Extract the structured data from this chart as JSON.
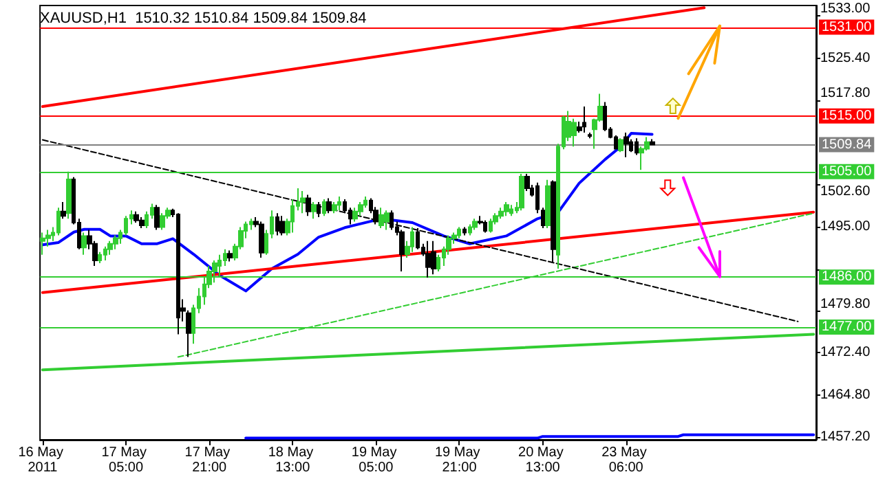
{
  "chart_data": {
    "type": "candlestick",
    "title": "XAUUSD,H1  1510.32 1510.84 1509.84 1509.84",
    "categories": [
      "16 May 2011",
      null,
      null,
      null,
      null,
      null,
      null,
      null,
      null,
      null,
      null,
      null,
      null,
      null,
      null,
      null,
      "17 May 05:00",
      null,
      null,
      null,
      null,
      null,
      null,
      null,
      null,
      null,
      null,
      null,
      null,
      null,
      null,
      null,
      "17 May 21:00",
      null,
      null,
      null,
      null,
      null,
      null,
      null,
      null,
      null,
      null,
      null,
      null,
      null,
      null,
      null,
      "18 May 13:00",
      null,
      null,
      null,
      null,
      null,
      null,
      null,
      null,
      null,
      null,
      null,
      null,
      null,
      null,
      null,
      "19 May 05:00",
      null,
      null,
      null,
      null,
      null,
      null,
      null,
      null,
      null,
      null,
      null,
      null,
      null,
      null,
      null,
      "19 May 21:00",
      null,
      null,
      null,
      null,
      null,
      null,
      null,
      null,
      null,
      null,
      null,
      null,
      null,
      null,
      null,
      "20 May 13:00",
      null,
      null,
      null,
      null,
      null,
      null,
      null,
      null,
      null,
      null,
      null,
      null,
      null,
      null,
      null,
      "23 May 06:00",
      null,
      null,
      null,
      null,
      null,
      null,
      null,
      null,
      null,
      null,
      null,
      null,
      null,
      null,
      null,
      null,
      null,
      null,
      null,
      null,
      null,
      null,
      null,
      null,
      null,
      null,
      null,
      null,
      null,
      null,
      null,
      null,
      null,
      null,
      null,
      null
    ],
    "ohlc": [
      [
        1492.5,
        1494,
        1490,
        1493
      ],
      [
        1493,
        1494.5,
        1491.5,
        1493.5
      ],
      [
        1493.5,
        1495,
        1492.5,
        1494
      ],
      [
        1494,
        1498.5,
        1493.5,
        1497.8
      ],
      [
        1497.8,
        1499.5,
        1496.5,
        1497
      ],
      [
        1497.5,
        1505,
        1496.5,
        1503.6
      ],
      [
        1503.6,
        1504,
        1495.5,
        1495.8
      ],
      [
        1495.8,
        1496.5,
        1491,
        1491.3
      ],
      [
        1491.3,
        1494,
        1490,
        1493.4
      ],
      [
        1493.4,
        1494.5,
        1491,
        1492
      ],
      [
        1492,
        1492.5,
        1488,
        1489
      ],
      [
        1489,
        1490.5,
        1488.5,
        1490
      ],
      [
        1490,
        1491.5,
        1489,
        1491
      ],
      [
        1491,
        1492.5,
        1490,
        1492
      ],
      [
        1492,
        1493.5,
        1491,
        1493
      ],
      [
        1493,
        1494.5,
        1492,
        1494
      ],
      [
        1494,
        1497,
        1493.5,
        1496.5
      ],
      [
        1496.5,
        1498,
        1495.5,
        1497.2
      ],
      [
        1497.2,
        1497.8,
        1495.8,
        1496.2
      ],
      [
        1496.2,
        1496.8,
        1494.8,
        1495.3
      ],
      [
        1495.3,
        1497.8,
        1494.8,
        1497.2
      ],
      [
        1497.2,
        1499.2,
        1496.5,
        1498.5
      ],
      [
        1498.5,
        1499,
        1494.5,
        1495
      ],
      [
        1495,
        1497.5,
        1494.5,
        1497
      ],
      [
        1497,
        1498.5,
        1496.5,
        1498
      ],
      [
        1498,
        1498.3,
        1496.8,
        1497.3
      ],
      [
        1497.3,
        1497.5,
        1475.7,
        1478.7
      ],
      [
        1480.4,
        1482,
        1478,
        1479.9
      ],
      [
        1479.5,
        1480,
        1471.6,
        1475.9
      ],
      [
        1475.9,
        1481,
        1474,
        1480.4
      ],
      [
        1480.4,
        1484,
        1479.5,
        1482.5
      ],
      [
        1482.5,
        1486,
        1481,
        1484.7
      ],
      [
        1484.7,
        1488,
        1484,
        1487
      ],
      [
        1487,
        1489,
        1485,
        1488.5
      ],
      [
        1488,
        1490,
        1486,
        1489
      ],
      [
        1489,
        1491,
        1488,
        1490.2
      ],
      [
        1490.2,
        1490.8,
        1488.8,
        1489.5
      ],
      [
        1489.5,
        1492,
        1489,
        1491.5
      ],
      [
        1491.5,
        1495,
        1491,
        1494.3
      ],
      [
        1494.3,
        1496,
        1493,
        1495.5
      ],
      [
        1495.5,
        1496.5,
        1494.5,
        1496
      ],
      [
        1496,
        1496.8,
        1495,
        1495.5
      ],
      [
        1495.5,
        1496,
        1489.5,
        1490.4
      ],
      [
        1490.4,
        1494.5,
        1490,
        1493.8
      ],
      [
        1493.8,
        1498,
        1493,
        1496.8
      ],
      [
        1496.8,
        1497.5,
        1493.5,
        1494.3
      ],
      [
        1496,
        1497,
        1493.5,
        1494
      ],
      [
        1494,
        1496.5,
        1493.5,
        1496
      ],
      [
        1496,
        1500,
        1494,
        1498.8
      ],
      [
        1498.8,
        1502,
        1498,
        1499.5
      ],
      [
        1499.5,
        1501.5,
        1497.5,
        1500.2
      ],
      [
        1500.2,
        1500.8,
        1497,
        1497.8
      ],
      [
        1497.8,
        1499.5,
        1496.5,
        1499
      ],
      [
        1499,
        1499.5,
        1496.8,
        1497.5
      ],
      [
        1497.5,
        1500,
        1497,
        1499.5
      ],
      [
        1499.5,
        1500.2,
        1497.5,
        1498
      ],
      [
        1498,
        1499.5,
        1497.5,
        1499
      ],
      [
        1499,
        1500.5,
        1498,
        1499.5
      ],
      [
        1499.5,
        1500,
        1497.5,
        1498
      ],
      [
        1498,
        1498.5,
        1495.5,
        1496.5
      ],
      [
        1496.5,
        1498.5,
        1496,
        1497.8
      ],
      [
        1497.8,
        1499.5,
        1497,
        1499
      ],
      [
        1499,
        1500.5,
        1498.5,
        1499.8
      ],
      [
        1499.8,
        1500.2,
        1497.5,
        1498
      ],
      [
        1498,
        1498.6,
        1495.5,
        1496
      ],
      [
        1495.3,
        1498.5,
        1494.8,
        1497.2
      ],
      [
        1496,
        1498,
        1494.5,
        1497.5
      ],
      [
        1497.5,
        1498,
        1494.5,
        1495
      ],
      [
        1495,
        1496,
        1493.5,
        1494.1
      ],
      [
        1494.1,
        1494.5,
        1487,
        1490.1
      ],
      [
        1490.1,
        1492.5,
        1489.5,
        1491.5
      ],
      [
        1491.5,
        1495,
        1490.5,
        1494.1
      ],
      [
        1494.1,
        1494.8,
        1491,
        1491.3
      ],
      [
        1491.3,
        1492,
        1489.8,
        1490.2
      ],
      [
        1490.2,
        1492.5,
        1485.9,
        1487.8
      ],
      [
        1490.5,
        1492.5,
        1486.5,
        1487.5
      ],
      [
        1487.5,
        1490,
        1487,
        1489.5
      ],
      [
        1489.5,
        1491.5,
        1488,
        1491
      ],
      [
        1491,
        1493.5,
        1490,
        1493
      ],
      [
        1493,
        1494,
        1492,
        1493.5
      ],
      [
        1493.5,
        1495,
        1493,
        1494.6
      ],
      [
        1494.6,
        1495,
        1493.5,
        1494
      ],
      [
        1494,
        1495.5,
        1493.5,
        1495
      ],
      [
        1495,
        1496.5,
        1494.5,
        1496
      ],
      [
        1496,
        1497,
        1495.5,
        1495.8
      ],
      [
        1495.8,
        1496.2,
        1494,
        1494.3
      ],
      [
        1494.3,
        1496.5,
        1494,
        1496
      ],
      [
        1496,
        1497.5,
        1495.5,
        1497
      ],
      [
        1497,
        1498.5,
        1496.5,
        1497.8
      ],
      [
        1497.8,
        1499.5,
        1497,
        1499
      ],
      [
        1497.5,
        1499,
        1497,
        1498.2
      ],
      [
        1498,
        1499.5,
        1497.5,
        1498.5
      ],
      [
        1498.5,
        1504.6,
        1498,
        1504.1
      ],
      [
        1504.1,
        1504.6,
        1501.5,
        1502
      ],
      [
        1502,
        1502.6,
        1500.5,
        1500.8
      ],
      [
        1502.4,
        1503,
        1497.5,
        1498.2
      ],
      [
        1498,
        1498.5,
        1494.8,
        1495.3
      ],
      [
        1495.3,
        1503.5,
        1494.8,
        1502.4
      ],
      [
        1503.1,
        1503.4,
        1488.7,
        1491
      ],
      [
        1490,
        1510,
        1487.5,
        1509.5
      ],
      [
        1509.5,
        1515,
        1509,
        1514.8
      ],
      [
        1511.2,
        1515.9,
        1510.5,
        1514
      ],
      [
        1511.5,
        1514.5,
        1509.5,
        1513.8
      ],
      [
        1513,
        1514,
        1512,
        1512.4
      ],
      [
        1513.8,
        1516.7,
        1512,
        1513.1
      ],
      [
        1511.6,
        1512,
        1511,
        1511.4
      ],
      [
        1512.6,
        1514.5,
        1509.1,
        1514.3
      ],
      [
        1514.3,
        1519,
        1514,
        1516.7
      ],
      [
        1516.7,
        1517.5,
        1512.3,
        1512.6
      ],
      [
        1512.6,
        1513,
        1511,
        1511.2
      ],
      [
        1511.2,
        1511.5,
        1509,
        1509.1
      ],
      [
        1508.8,
        1511,
        1508.5,
        1510.7
      ],
      [
        1511.2,
        1512,
        1507.6,
        1510
      ],
      [
        1510.3,
        1510.8,
        1508.5,
        1508.8
      ],
      [
        1510.3,
        1511,
        1508,
        1508.4
      ],
      [
        1508.4,
        1509.5,
        1505.3,
        1509.1
      ],
      [
        1509.1,
        1511.2,
        1508.8,
        1510.3
      ],
      [
        1510.32,
        1510.84,
        1509.84,
        1509.84
      ],
      null,
      null,
      null,
      null,
      null,
      null,
      null,
      null,
      null,
      null,
      null,
      null,
      null,
      null,
      null,
      null,
      null,
      null,
      null,
      null,
      null,
      null,
      null,
      null,
      null,
      null,
      null,
      null,
      null,
      null,
      null
    ],
    "series": [
      {
        "type": "line",
        "color": "#0000ff",
        "values": [
          1491.8,
          null,
          null,
          1492.2,
          null,
          null,
          1494.1,
          null,
          1494.6,
          null,
          null,
          1494.6,
          null,
          1493.4,
          null,
          null,
          1493.4,
          null,
          null,
          1492,
          null,
          null,
          1492,
          null,
          null,
          1492.9,
          null,
          null,
          null,
          1490.1,
          null,
          null,
          null,
          null,
          1486.3,
          null,
          null,
          null,
          null,
          1483.5,
          null,
          null,
          null,
          null,
          1487.5,
          null,
          null,
          null,
          null,
          1490.1,
          null,
          null,
          null,
          1493.2,
          null,
          null,
          null,
          null,
          1494.9,
          null,
          null,
          null,
          null,
          null,
          null,
          1496.5,
          null,
          null,
          null,
          null,
          null,
          1495.8,
          null,
          null,
          null,
          null,
          null,
          1493.4,
          null,
          null,
          null,
          null,
          1492,
          null,
          null,
          null,
          null,
          null,
          null,
          1493.4,
          null,
          null,
          null,
          null,
          null,
          1496.5,
          null,
          null,
          null,
          1497.7,
          null,
          null,
          null,
          1502.9,
          null,
          null,
          null,
          null,
          1507.2,
          null,
          null,
          1509.5,
          null,
          1511.9,
          null,
          null,
          null,
          1511.7,
          null,
          null,
          null,
          null,
          null,
          null,
          null,
          null,
          null,
          null,
          null,
          null,
          null,
          null,
          null,
          null,
          null,
          null,
          null,
          null,
          null,
          null,
          null,
          null,
          null,
          null,
          null,
          null,
          null,
          null,
          null
        ]
      },
      {
        "type": "line",
        "color": "#ff0000",
        "values": [
          1516.7,
          null,
          null,
          null,
          null,
          null,
          null,
          null,
          null,
          null,
          null,
          null,
          null,
          null,
          null,
          null,
          null,
          null,
          null,
          null,
          null,
          null,
          null,
          null,
          null,
          null,
          null,
          null,
          null,
          null,
          null,
          null,
          null,
          null,
          null,
          null,
          null,
          null,
          null,
          null,
          null,
          null,
          null,
          null,
          null,
          null,
          null,
          null,
          null,
          null,
          null,
          null,
          null,
          null,
          null,
          null,
          null,
          null,
          null,
          null,
          null,
          null,
          null,
          null,
          null,
          null,
          null,
          null,
          null,
          null,
          null,
          null,
          null,
          null,
          null,
          null,
          null,
          null,
          null,
          null,
          null,
          null,
          null,
          null,
          null,
          null,
          null,
          null,
          null,
          null,
          null,
          null,
          null,
          null,
          null,
          null,
          null,
          null,
          null,
          null,
          null,
          null,
          null,
          null,
          null,
          null,
          null,
          null,
          null,
          null,
          null,
          null,
          null,
          null,
          null,
          null,
          null,
          null,
          null,
          null,
          null,
          null,
          null,
          null,
          null,
          null,
          null,
          1534.5,
          null,
          null,
          null,
          null,
          null,
          null,
          null,
          null,
          null,
          null,
          null,
          null,
          null,
          null,
          null,
          null,
          null,
          null,
          null,
          null,
          null
        ]
      },
      {
        "type": "line",
        "color": "#ff0000",
        "values": [
          1483.2,
          null,
          null,
          null,
          null,
          null,
          null,
          null,
          null,
          null,
          null,
          null,
          null,
          null,
          null,
          null,
          null,
          null,
          null,
          null,
          null,
          null,
          null,
          null,
          null,
          null,
          null,
          null,
          null,
          null,
          null,
          null,
          null,
          null,
          null,
          null,
          null,
          null,
          null,
          null,
          null,
          null,
          null,
          null,
          null,
          null,
          null,
          null,
          null,
          null,
          null,
          null,
          null,
          null,
          null,
          null,
          null,
          null,
          null,
          null,
          null,
          null,
          null,
          null,
          null,
          null,
          null,
          null,
          null,
          null,
          null,
          null,
          null,
          null,
          null,
          null,
          null,
          null,
          null,
          null,
          null,
          null,
          null,
          null,
          null,
          null,
          null,
          null,
          null,
          null,
          null,
          null,
          null,
          null,
          null,
          null,
          null,
          null,
          null,
          null,
          null,
          null,
          null,
          null,
          null,
          null,
          null,
          null,
          null,
          null,
          null,
          null,
          null,
          null,
          null,
          null,
          null,
          null,
          null,
          null,
          null,
          null,
          null,
          null,
          null,
          null,
          null,
          null,
          null,
          null,
          null,
          null,
          null,
          null,
          null,
          null,
          null,
          null,
          null,
          null,
          null,
          null,
          null,
          null,
          null,
          null,
          null,
          null,
          1497.7
        ]
      },
      {
        "type": "line",
        "color": "#32cd32",
        "values": [
          1469.3,
          null,
          null,
          null,
          null,
          null,
          null,
          null,
          null,
          null,
          null,
          null,
          null,
          null,
          null,
          null,
          null,
          null,
          null,
          null,
          null,
          null,
          null,
          null,
          null,
          null,
          null,
          null,
          null,
          null,
          null,
          null,
          null,
          null,
          null,
          null,
          null,
          null,
          null,
          null,
          null,
          null,
          null,
          null,
          null,
          null,
          null,
          null,
          null,
          null,
          null,
          null,
          null,
          null,
          null,
          null,
          null,
          null,
          null,
          null,
          null,
          null,
          null,
          null,
          null,
          null,
          null,
          null,
          null,
          null,
          null,
          null,
          null,
          null,
          null,
          null,
          null,
          null,
          null,
          null,
          null,
          null,
          null,
          null,
          null,
          null,
          null,
          null,
          null,
          null,
          null,
          null,
          null,
          null,
          null,
          null,
          null,
          null,
          null,
          null,
          null,
          null,
          null,
          null,
          null,
          null,
          null,
          null,
          null,
          null,
          null,
          null,
          null,
          null,
          null,
          null,
          null,
          null,
          null,
          null,
          null,
          null,
          null,
          null,
          null,
          null,
          null,
          null,
          null,
          null,
          null,
          null,
          null,
          null,
          null,
          null,
          null,
          null,
          null,
          null,
          null,
          null,
          null,
          null,
          null,
          null,
          null,
          null,
          1475.7
        ]
      },
      {
        "type": "line",
        "color": "#32cd32",
        "line_style": "dashed",
        "values": [
          null,
          null,
          null,
          null,
          null,
          null,
          null,
          null,
          null,
          null,
          null,
          null,
          null,
          null,
          null,
          null,
          null,
          null,
          null,
          null,
          null,
          null,
          null,
          null,
          null,
          null,
          1471.6,
          null,
          null,
          null,
          null,
          null,
          null,
          null,
          null,
          null,
          null,
          null,
          null,
          null,
          null,
          null,
          null,
          null,
          null,
          null,
          null,
          null,
          null,
          null,
          null,
          null,
          null,
          null,
          null,
          null,
          null,
          null,
          null,
          null,
          null,
          null,
          null,
          null,
          null,
          null,
          null,
          null,
          null,
          null,
          null,
          null,
          null,
          null,
          null,
          null,
          null,
          null,
          null,
          null,
          null,
          null,
          null,
          null,
          null,
          null,
          null,
          null,
          null,
          null,
          null,
          null,
          null,
          null,
          null,
          null,
          null,
          null,
          null,
          null,
          null,
          null,
          null,
          null,
          null,
          null,
          null,
          null,
          null,
          null,
          null,
          null,
          null,
          null,
          null,
          null,
          null,
          null,
          null,
          null,
          null,
          null,
          null,
          null,
          null,
          null,
          null,
          null,
          null,
          null,
          null,
          null,
          null,
          null,
          null,
          null,
          null,
          null,
          null,
          null,
          null,
          null,
          null,
          null,
          null,
          null,
          null,
          null,
          1497.5
        ]
      },
      {
        "type": "line",
        "color": "#000000",
        "line_style": "dashed",
        "values": [
          1510.7,
          null,
          null,
          null,
          null,
          null,
          null,
          null,
          null,
          null,
          null,
          null,
          null,
          null,
          null,
          null,
          null,
          null,
          null,
          null,
          null,
          null,
          null,
          null,
          null,
          null,
          null,
          null,
          null,
          null,
          null,
          null,
          null,
          null,
          null,
          null,
          null,
          null,
          null,
          null,
          null,
          null,
          null,
          null,
          null,
          null,
          null,
          null,
          null,
          null,
          null,
          null,
          null,
          null,
          null,
          null,
          null,
          null,
          null,
          null,
          null,
          null,
          null,
          null,
          null,
          null,
          null,
          null,
          null,
          null,
          null,
          null,
          null,
          null,
          null,
          null,
          null,
          null,
          null,
          null,
          null,
          null,
          null,
          null,
          null,
          null,
          null,
          null,
          null,
          null,
          null,
          null,
          null,
          null,
          null,
          null,
          null,
          null,
          null,
          null,
          null,
          null,
          null,
          null,
          null,
          null,
          null,
          null,
          null,
          null,
          null,
          null,
          null,
          null,
          null,
          null,
          null,
          null,
          null,
          null,
          null,
          null,
          null,
          null,
          null,
          null,
          null,
          null,
          null,
          null,
          null,
          null,
          null,
          null,
          null,
          null,
          null,
          null,
          null,
          null,
          null,
          null,
          null,
          null,
          null,
          1478,
          null,
          null,
          null
        ]
      },
      {
        "type": "line",
        "color": "#0000ff",
        "values": [
          null,
          null,
          null,
          null,
          null,
          null,
          null,
          null,
          null,
          null,
          null,
          null,
          null,
          null,
          null,
          null,
          null,
          null,
          null,
          null,
          null,
          null,
          null,
          null,
          null,
          null,
          null,
          null,
          null,
          null,
          null,
          null,
          null,
          null,
          null,
          null,
          null,
          null,
          null,
          1457,
          null,
          null,
          null,
          null,
          null,
          null,
          null,
          null,
          null,
          null,
          null,
          null,
          null,
          null,
          null,
          null,
          null,
          null,
          null,
          null,
          null,
          null,
          null,
          null,
          null,
          null,
          null,
          null,
          null,
          null,
          null,
          null,
          null,
          null,
          null,
          null,
          null,
          null,
          null,
          null,
          null,
          null,
          null,
          null,
          null,
          null,
          null,
          null,
          null,
          null,
          null,
          null,
          null,
          null,
          null,
          1457,
          1457.3,
          null,
          null,
          null,
          null,
          null,
          null,
          null,
          null,
          null,
          null,
          null,
          null,
          null,
          null,
          null,
          null,
          null,
          null,
          null,
          null,
          null,
          null,
          null,
          null,
          null,
          1457.3,
          1457.6,
          null,
          null,
          null,
          null,
          null,
          null,
          null,
          null,
          null,
          null,
          null,
          null,
          null,
          null,
          null,
          null,
          null,
          null,
          null,
          null,
          null,
          null,
          null,
          null,
          1457.6
        ]
      }
    ],
    "ref_lines": [
      {
        "axis": "y",
        "value": 1531,
        "label": "1531.00",
        "color": "#ff0000"
      },
      {
        "axis": "y",
        "value": 1515,
        "label": "1515.00",
        "color": "#ff0000"
      },
      {
        "axis": "y",
        "value": 1509.84,
        "label": "1509.84",
        "color": "#808080"
      },
      {
        "axis": "y",
        "value": 1505,
        "label": "1505.00",
        "color": "#32cd32"
      },
      {
        "axis": "y",
        "value": 1486,
        "label": "1486.00",
        "color": "#32cd32"
      },
      {
        "axis": "y",
        "value": 1477,
        "label": "1477.00",
        "color": "#32cd32"
      }
    ],
    "ylim": [
      1456.7,
      1534.9
    ],
    "yticks": [
      {
        "value": 1533,
        "label": "1533.00"
      },
      {
        "value": 1525.4,
        "label": "1525.40"
      },
      {
        "value": 1517.8,
        "label": "1517.80"
      },
      {
        "value": 1502.6,
        "label": "1502.60"
      },
      {
        "value": 1495,
        "label": "1495.00"
      },
      {
        "value": 1487.4,
        "label": null
      },
      {
        "value": 1479.8,
        "label": "1479.80"
      },
      {
        "value": 1472.4,
        "label": "1472.40"
      },
      {
        "value": 1464.8,
        "label": "1464.80"
      },
      {
        "value": 1457.2,
        "label": "1457.20"
      }
    ],
    "grid": false
  }
}
